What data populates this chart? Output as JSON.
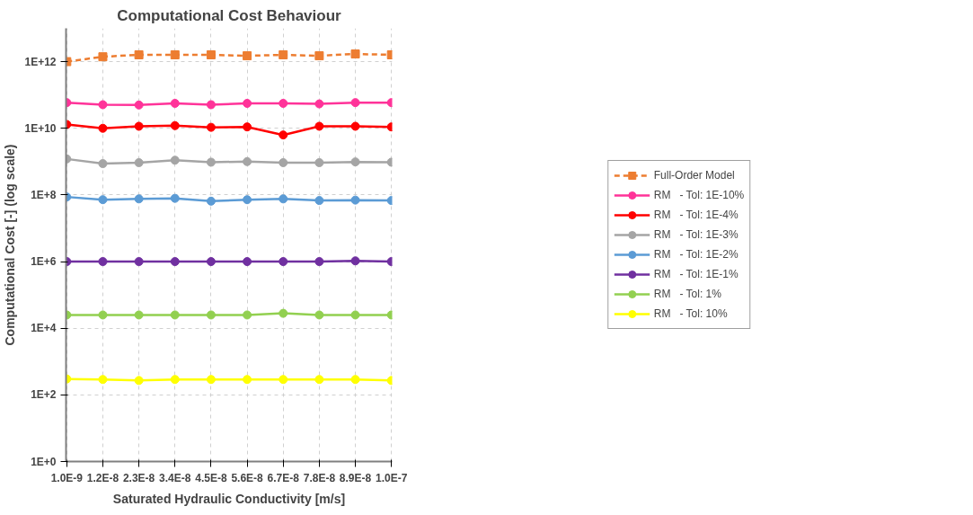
{
  "chart_data": {
    "type": "line",
    "title": "Computational Cost Behaviour",
    "xlabel": "Saturated Hydraulic Conductivity [m/s]",
    "ylabel": "Computational Cost [-] (log scale)",
    "categories": [
      "1.0E-9",
      "1.2E-8",
      "2.3E-8",
      "3.4E-8",
      "4.5E-8",
      "5.6E-8",
      "6.7E-8",
      "7.8E-8",
      "8.9E-8",
      "1.0E-7"
    ],
    "log": "y",
    "ylim": [
      1,
      10000000000000
    ],
    "yticks": [
      {
        "value": 1,
        "label": "1E+0"
      },
      {
        "value": 100,
        "label": "1E+2"
      },
      {
        "value": 10000,
        "label": "1E+4"
      },
      {
        "value": 1000000,
        "label": "1E+6"
      },
      {
        "value": 100000000,
        "label": "1E+8"
      },
      {
        "value": 10000000000,
        "label": "1E+10"
      },
      {
        "value": 1000000000000,
        "label": "1E+12"
      }
    ],
    "grid": true,
    "legend": "right",
    "marker": "circle",
    "series": [
      {
        "name": "Full-Order Model",
        "color": "#ed7d31",
        "marker": "square",
        "line_style": "dashed",
        "values": [
          1000000000000.0,
          1400000000000.0,
          1600000000000.0,
          1600000000000.0,
          1600000000000.0,
          1500000000000.0,
          1600000000000.0,
          1500000000000.0,
          1700000000000.0,
          1600000000000.0
        ]
      },
      {
        "name": "RM   - Tol: 1E-10%",
        "color": "#ff3399",
        "values": [
          59000000000.0,
          51000000000.0,
          50000000000.0,
          56000000000.0,
          51000000000.0,
          56000000000.0,
          56000000000.0,
          54000000000.0,
          59000000000.0,
          59000000000.0
        ]
      },
      {
        "name": "RM   - Tol: 1E-4%",
        "color": "#ff0000",
        "values": [
          13000000000.0,
          10000000000.0,
          11500000000.0,
          12000000000.0,
          10700000000.0,
          11000000000.0,
          6300000000.0,
          11500000000.0,
          11500000000.0,
          11000000000.0
        ]
      },
      {
        "name": "RM   - Tol: 1E-3%",
        "color": "#a5a5a5",
        "values": [
          1200000000.0,
          870000000.0,
          930000000.0,
          1100000000.0,
          960000000.0,
          1000000000.0,
          930000000.0,
          930000000.0,
          980000000.0,
          960000000.0
        ]
      },
      {
        "name": "RM   - Tol: 1E-2%",
        "color": "#5b9bd5",
        "values": [
          87000000.0,
          72000000.0,
          76000000.0,
          79000000.0,
          65000000.0,
          72000000.0,
          76000000.0,
          68000000.0,
          70000000.0,
          68000000.0
        ]
      },
      {
        "name": "RM   - Tol: 1E-1%",
        "color": "#7030a0",
        "values": [
          1000000.0,
          1000000.0,
          1000000.0,
          1000000.0,
          1000000.0,
          1000000.0,
          1000000.0,
          1000000.0,
          1050000.0,
          1000000.0
        ]
      },
      {
        "name": "RM   - Tol: 1%",
        "color": "#92d050",
        "values": [
          25000.0,
          25000.0,
          25000.0,
          25000.0,
          25000.0,
          25000.0,
          28000.0,
          25000.0,
          25000.0,
          25000.0
        ]
      },
      {
        "name": "RM   - Tol: 10%",
        "color": "#ffff00",
        "values": [
          300,
          290,
          270,
          290,
          290,
          290,
          290,
          290,
          290,
          270
        ]
      }
    ]
  }
}
